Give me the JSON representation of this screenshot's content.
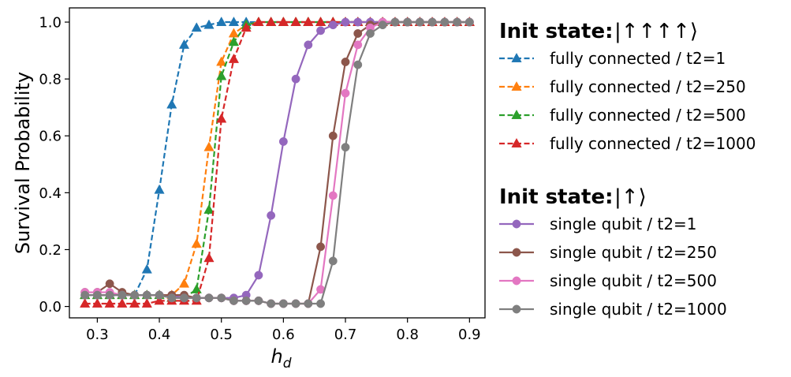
{
  "chart_data": {
    "type": "line",
    "title": "",
    "xlabel_main": "h",
    "xlabel_sub": "d",
    "ylabel": "Survival Probability",
    "xlim": [
      0.255,
      0.925
    ],
    "ylim": [
      -0.04,
      1.05
    ],
    "xticks": [
      0.3,
      0.4,
      0.5,
      0.6,
      0.7,
      0.8,
      0.9
    ],
    "xtick_labels": [
      "0.3",
      "0.4",
      "0.5",
      "0.6",
      "0.7",
      "0.8",
      "0.9"
    ],
    "yticks": [
      0.0,
      0.2,
      0.4,
      0.6,
      0.8,
      1.0
    ],
    "ytick_labels": [
      "0.0",
      "0.2",
      "0.4",
      "0.6",
      "0.8",
      "1.0"
    ],
    "x": [
      0.28,
      0.3,
      0.32,
      0.34,
      0.36,
      0.38,
      0.4,
      0.42,
      0.44,
      0.46,
      0.48,
      0.5,
      0.52,
      0.54,
      0.56,
      0.58,
      0.6,
      0.62,
      0.64,
      0.66,
      0.68,
      0.7,
      0.72,
      0.74,
      0.76,
      0.78,
      0.8,
      0.82,
      0.84,
      0.86,
      0.88,
      0.9
    ],
    "legend_groups": [
      {
        "title": "Init state:",
        "ket": "|↑↑↑↑⟩",
        "marker": "triangle",
        "dashed": true
      },
      {
        "title": "Init state:",
        "ket": "|↑⟩",
        "marker": "circle",
        "dashed": false
      }
    ],
    "series": [
      {
        "name": "fully connected / t2=1",
        "color": "#1f77b4",
        "marker": "triangle",
        "dashed": true,
        "values": [
          0.04,
          0.04,
          0.04,
          0.04,
          0.04,
          0.13,
          0.41,
          0.71,
          0.92,
          0.98,
          0.99,
          1.0,
          1.0,
          1.0,
          1.0,
          1.0,
          1.0,
          1.0,
          1.0,
          1.0,
          1.0,
          1.0,
          1.0,
          1.0,
          1.0,
          1.0,
          1.0,
          1.0,
          1.0,
          1.0,
          1.0,
          1.0
        ]
      },
      {
        "name": "fully connected / t2=250",
        "color": "#ff7f0e",
        "marker": "triangle",
        "dashed": true,
        "values": [
          0.04,
          0.04,
          0.04,
          0.04,
          0.04,
          0.04,
          0.04,
          0.04,
          0.08,
          0.22,
          0.56,
          0.86,
          0.96,
          0.99,
          1.0,
          1.0,
          1.0,
          1.0,
          1.0,
          1.0,
          1.0,
          1.0,
          1.0,
          1.0,
          1.0,
          1.0,
          1.0,
          1.0,
          1.0,
          1.0,
          1.0,
          1.0
        ]
      },
      {
        "name": "fully connected / t2=500",
        "color": "#2ca02c",
        "marker": "triangle",
        "dashed": true,
        "values": [
          0.04,
          0.04,
          0.04,
          0.04,
          0.04,
          0.04,
          0.04,
          0.03,
          0.03,
          0.06,
          0.34,
          0.81,
          0.93,
          0.99,
          1.0,
          1.0,
          1.0,
          1.0,
          1.0,
          1.0,
          1.0,
          1.0,
          1.0,
          1.0,
          1.0,
          1.0,
          1.0,
          1.0,
          1.0,
          1.0,
          1.0,
          1.0
        ]
      },
      {
        "name": "fully connected / t2=1000",
        "color": "#d62728",
        "marker": "triangle",
        "dashed": true,
        "values": [
          0.01,
          0.01,
          0.01,
          0.01,
          0.01,
          0.01,
          0.02,
          0.02,
          0.02,
          0.02,
          0.17,
          0.66,
          0.87,
          0.98,
          1.0,
          1.0,
          1.0,
          1.0,
          1.0,
          1.0,
          1.0,
          1.0,
          1.0,
          1.0,
          1.0,
          1.0,
          1.0,
          1.0,
          1.0,
          1.0,
          1.0,
          1.0
        ]
      },
      {
        "name": "single qubit / t2=1",
        "color": "#9467bd",
        "marker": "circle",
        "dashed": false,
        "values": [
          0.04,
          0.04,
          0.04,
          0.04,
          0.04,
          0.04,
          0.04,
          0.04,
          0.03,
          0.03,
          0.03,
          0.03,
          0.03,
          0.04,
          0.11,
          0.32,
          0.58,
          0.8,
          0.92,
          0.97,
          0.99,
          1.0,
          1.0,
          1.0,
          1.0,
          1.0,
          1.0,
          1.0,
          1.0,
          1.0,
          1.0,
          1.0
        ]
      },
      {
        "name": "single qubit / t2=250",
        "color": "#8c564b",
        "marker": "circle",
        "dashed": false,
        "values": [
          0.05,
          0.05,
          0.08,
          0.05,
          0.04,
          0.04,
          0.04,
          0.04,
          0.04,
          0.03,
          0.03,
          0.03,
          0.02,
          0.02,
          0.02,
          0.01,
          0.01,
          0.01,
          0.01,
          0.21,
          0.6,
          0.86,
          0.96,
          0.99,
          1.0,
          1.0,
          1.0,
          1.0,
          1.0,
          1.0,
          1.0,
          1.0
        ]
      },
      {
        "name": "single qubit / t2=500",
        "color": "#e377c2",
        "marker": "circle",
        "dashed": false,
        "values": [
          0.05,
          0.05,
          0.05,
          0.04,
          0.04,
          0.04,
          0.04,
          0.03,
          0.03,
          0.03,
          0.03,
          0.03,
          0.02,
          0.02,
          0.02,
          0.01,
          0.01,
          0.01,
          0.01,
          0.06,
          0.39,
          0.75,
          0.92,
          0.98,
          1.0,
          1.0,
          1.0,
          1.0,
          1.0,
          1.0,
          1.0,
          1.0
        ]
      },
      {
        "name": "single qubit / t2=1000",
        "color": "#7f7f7f",
        "marker": "circle",
        "dashed": false,
        "values": [
          0.04,
          0.04,
          0.04,
          0.04,
          0.04,
          0.04,
          0.04,
          0.03,
          0.03,
          0.03,
          0.03,
          0.03,
          0.02,
          0.02,
          0.02,
          0.01,
          0.01,
          0.01,
          0.01,
          0.01,
          0.16,
          0.56,
          0.85,
          0.96,
          0.99,
          1.0,
          1.0,
          1.0,
          1.0,
          1.0,
          1.0,
          1.0
        ]
      }
    ]
  }
}
